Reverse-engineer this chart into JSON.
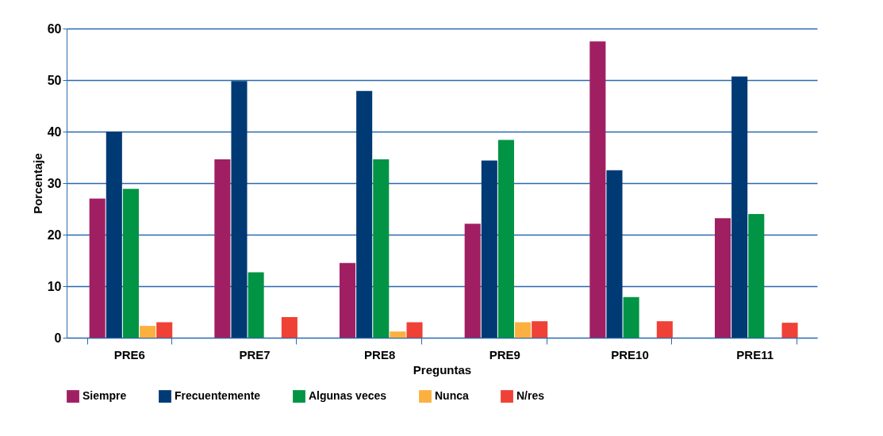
{
  "chart_data": {
    "type": "bar",
    "xlabel": "Preguntas",
    "ylabel": "Porcentaje",
    "categories": [
      "PRE6",
      "PRE7",
      "PRE8",
      "PRE9",
      "PRE10",
      "PRE11"
    ],
    "series": [
      {
        "name": "Siempre",
        "color": "#a01f63",
        "values": [
          27,
          34.6,
          14.5,
          22.1,
          57.5,
          23.2
        ]
      },
      {
        "name": "Frecuentemente",
        "color": "#003a75",
        "values": [
          40,
          49.8,
          47.9,
          34.4,
          32.5,
          50.7
        ]
      },
      {
        "name": "Algunas veces",
        "color": "#009444",
        "values": [
          28.9,
          12.7,
          34.6,
          38.4,
          7.9,
          24.0
        ]
      },
      {
        "name": "Nunca",
        "color": "#fbb040",
        "values": [
          2.3,
          null,
          1.2,
          3.0,
          null,
          null
        ]
      },
      {
        "name": "N/res",
        "color": "#ef4136",
        "values": [
          3.0,
          4.0,
          3.0,
          3.2,
          3.2,
          2.9
        ]
      }
    ],
    "ylim": [
      0,
      60
    ],
    "yticks": [
      0,
      10,
      20,
      30,
      40,
      50,
      60
    ],
    "grid": "y",
    "legend": "bottom"
  }
}
